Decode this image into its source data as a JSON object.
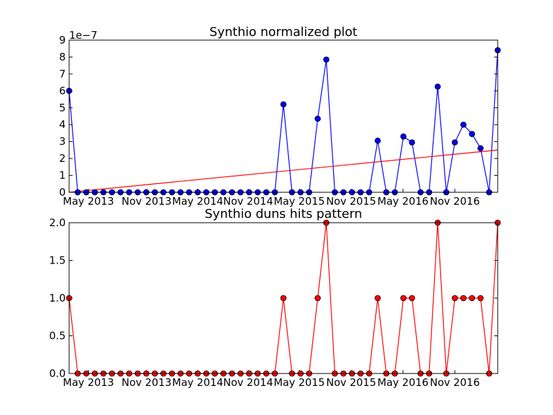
{
  "chart_data": [
    {
      "type": "line",
      "title": "Synthio normalized plot",
      "offset_label": "1e−7",
      "x_ticks": [
        "May 2013",
        "Nov 2013",
        "May 2014",
        "Nov 2014",
        "May 2015",
        "Nov 2015",
        "May 2016",
        "Nov 2016"
      ],
      "y_ticks": [
        "0",
        "1",
        "2",
        "3",
        "4",
        "5",
        "6",
        "7",
        "8",
        "9"
      ],
      "ylim": [
        0,
        9
      ],
      "y_unit": "1e-7",
      "colors": {
        "series": "#0000ff",
        "trend": "#ff0000"
      },
      "series": [
        {
          "values": [
            6.0,
            0,
            0,
            0,
            0,
            0,
            0,
            0,
            0,
            0,
            0,
            0,
            0,
            0,
            0,
            0,
            0,
            0,
            0,
            0,
            0,
            0,
            0,
            0,
            0,
            5.2,
            0,
            0,
            0,
            4.35,
            7.85,
            0,
            0,
            0,
            0,
            0,
            3.05,
            0,
            0,
            3.3,
            2.95,
            0,
            0,
            6.25,
            0,
            2.95,
            4.0,
            3.45,
            2.6,
            0,
            8.4
          ]
        }
      ],
      "trend_line": {
        "start": 0.0,
        "end": 2.5
      }
    },
    {
      "type": "line",
      "title": "Synthio duns hits pattern",
      "x_ticks": [
        "May 2013",
        "Nov 2013",
        "May 2014",
        "Nov 2014",
        "May 2015",
        "Nov 2015",
        "May 2016",
        "Nov 2016"
      ],
      "y_ticks": [
        "0.0",
        "0.5",
        "1.0",
        "1.5",
        "2.0"
      ],
      "ylim": [
        0,
        2
      ],
      "colors": {
        "series": "#ff0000"
      },
      "series": [
        {
          "values": [
            1,
            0,
            0,
            0,
            0,
            0,
            0,
            0,
            0,
            0,
            0,
            0,
            0,
            0,
            0,
            0,
            0,
            0,
            0,
            0,
            0,
            0,
            0,
            0,
            0,
            1,
            0,
            0,
            0,
            1,
            2,
            0,
            0,
            0,
            0,
            0,
            1,
            0,
            0,
            1,
            1,
            0,
            0,
            2,
            0,
            1,
            1,
            1,
            1,
            0,
            2
          ]
        }
      ]
    }
  ]
}
